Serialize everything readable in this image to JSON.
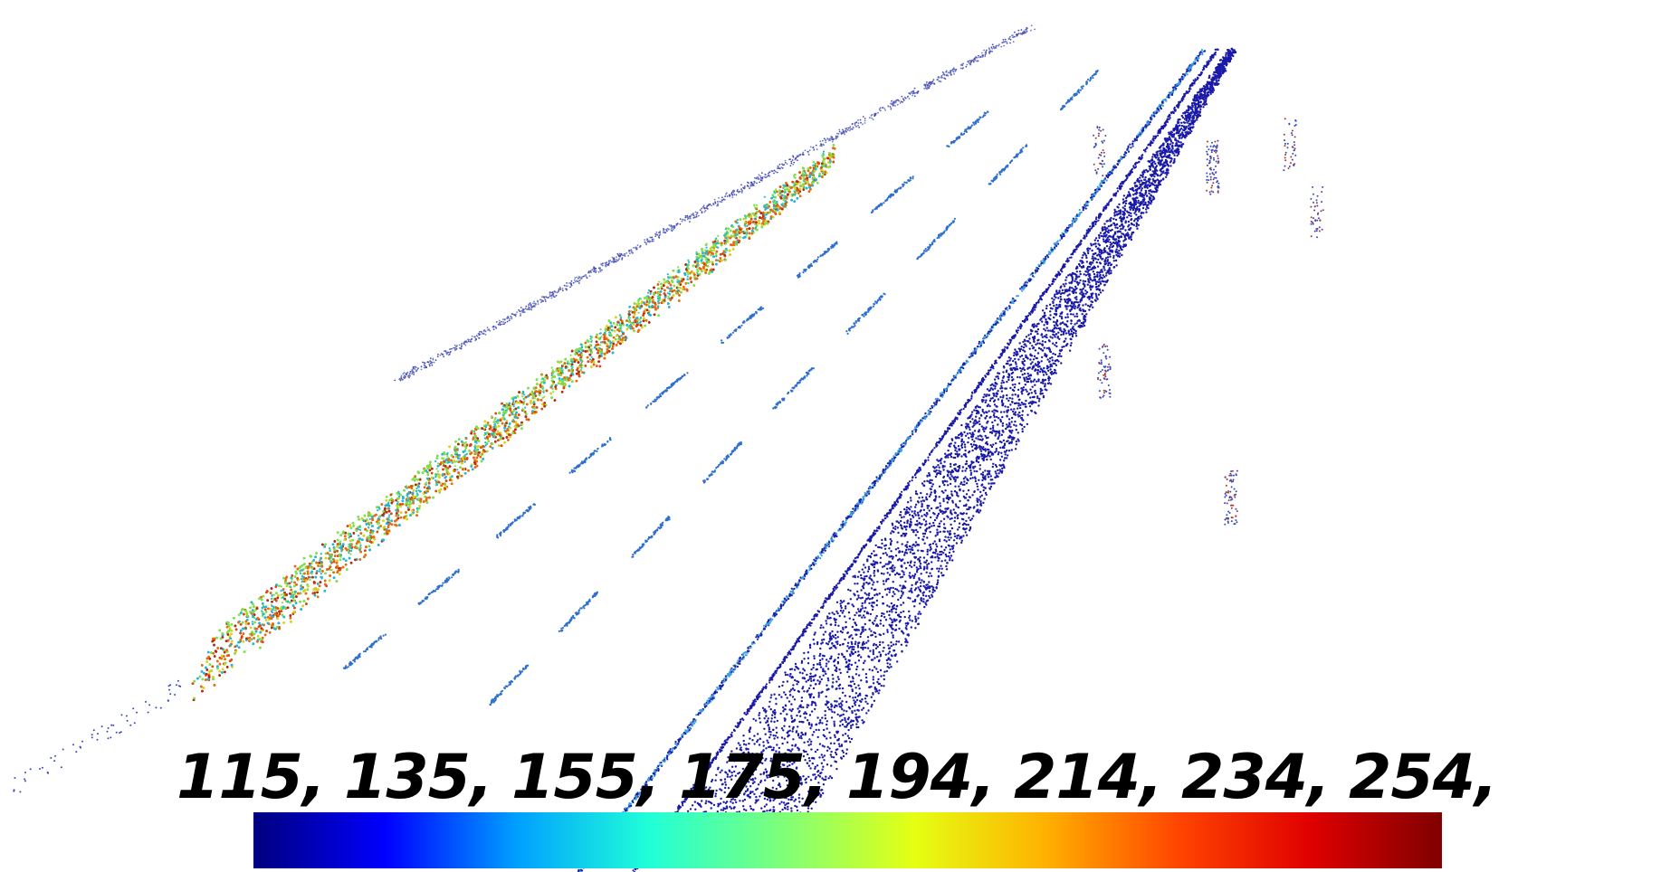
{
  "colorbar": {
    "ticks": [
      "115,",
      "135,",
      "155,",
      "175,",
      "194,",
      "214,",
      "234,",
      "254,"
    ],
    "stops": [
      "#00007f",
      "#0000ff",
      "#00a0ff",
      "#20ffd8",
      "#7dff7a",
      "#e5ff12",
      "#ffb000",
      "#ff4500",
      "#e00000",
      "#800000"
    ]
  },
  "scene": {
    "description_colors": {
      "ground": "#1a1aa8",
      "barrier_low": "#23b6d6",
      "barrier_mid": "#7ee04a",
      "barrier_high": "#e86b0f",
      "barrier_peak": "#b52a10"
    }
  }
}
